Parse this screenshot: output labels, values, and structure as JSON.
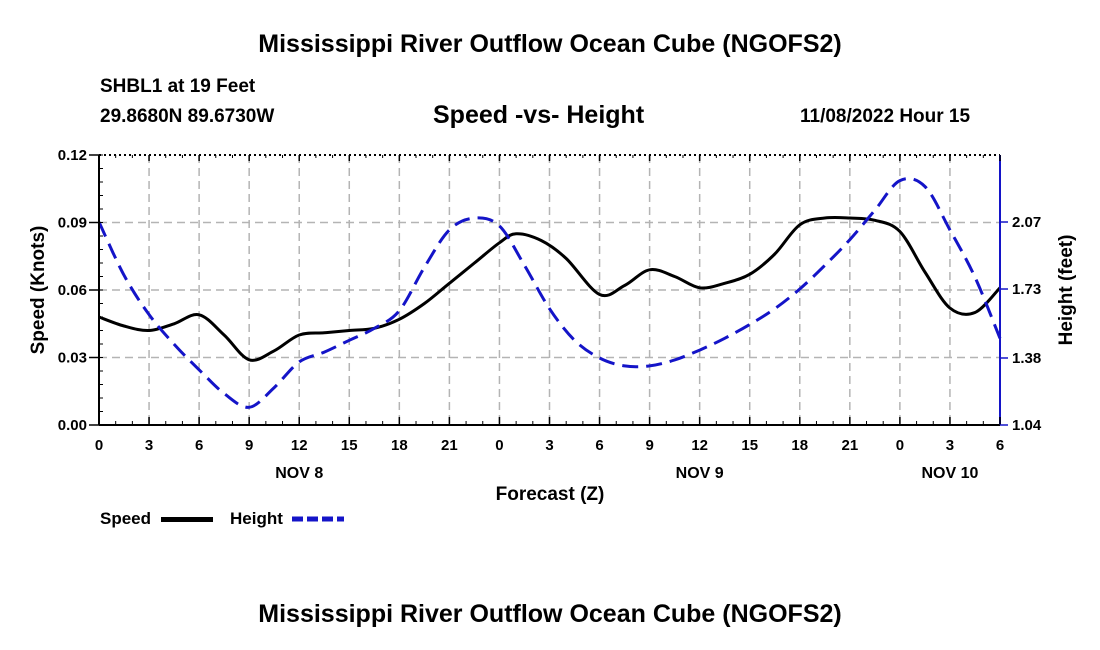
{
  "header": {
    "title": "Mississippi River Outflow Ocean Cube (NGOFS2)",
    "station": "SHBL1 at 19 Feet",
    "coords": "29.8680N  89.6730W",
    "plot_title": "Speed -vs- Height",
    "timestamp": "11/08/2022 Hour 15"
  },
  "footer": {
    "title": "Mississippi River Outflow Ocean Cube (NGOFS2)"
  },
  "legend": {
    "speed_label": "Speed",
    "height_label": "Height"
  },
  "colors": {
    "speed": "#000000",
    "height": "#1414c8",
    "grid": "#b4b4b4"
  },
  "chart_data": {
    "type": "line",
    "title": "Speed -vs- Height",
    "xlabel": "Forecast (Z)",
    "ylabel": "Speed (Knots)",
    "y2label": "Height (feet)",
    "grid": true,
    "x_unit": "hours since Nov 8 00Z",
    "xlim": [
      0,
      54
    ],
    "ylim": [
      0,
      0.12
    ],
    "y2lim": [
      1.04,
      2.41
    ],
    "x_ticks": [
      {
        "x": 0,
        "label": "0"
      },
      {
        "x": 3,
        "label": "3"
      },
      {
        "x": 6,
        "label": "6"
      },
      {
        "x": 9,
        "label": "9"
      },
      {
        "x": 12,
        "label": "12"
      },
      {
        "x": 15,
        "label": "15"
      },
      {
        "x": 18,
        "label": "18"
      },
      {
        "x": 21,
        "label": "21"
      },
      {
        "x": 24,
        "label": "0"
      },
      {
        "x": 27,
        "label": "3"
      },
      {
        "x": 30,
        "label": "6"
      },
      {
        "x": 33,
        "label": "9"
      },
      {
        "x": 36,
        "label": "12"
      },
      {
        "x": 39,
        "label": "15"
      },
      {
        "x": 42,
        "label": "18"
      },
      {
        "x": 45,
        "label": "21"
      },
      {
        "x": 48,
        "label": "0"
      },
      {
        "x": 51,
        "label": "3"
      },
      {
        "x": 54,
        "label": "6"
      }
    ],
    "date_labels": [
      {
        "x": 12,
        "label": "NOV 8"
      },
      {
        "x": 36,
        "label": "NOV 9"
      },
      {
        "x": 51,
        "label": "NOV 10"
      }
    ],
    "y_ticks": [
      {
        "v": 0.0,
        "label": "0.00"
      },
      {
        "v": 0.03,
        "label": "0.03"
      },
      {
        "v": 0.06,
        "label": "0.06"
      },
      {
        "v": 0.09,
        "label": "0.09"
      },
      {
        "v": 0.12,
        "label": "0.12"
      }
    ],
    "y2_ticks": [
      {
        "v": 1.04,
        "label": "1.04"
      },
      {
        "v": 1.38,
        "label": "1.38"
      },
      {
        "v": 1.73,
        "label": "1.73"
      },
      {
        "v": 2.07,
        "label": "2.07"
      }
    ],
    "series": [
      {
        "name": "Speed",
        "axis": "left",
        "style": "solid",
        "x": [
          0,
          1.5,
          3,
          4.5,
          6,
          7.5,
          9,
          10.5,
          12,
          13.5,
          15,
          16.5,
          18,
          19.5,
          21,
          22.5,
          24,
          25,
          26.5,
          28,
          30,
          31.5,
          33,
          34.5,
          36,
          37.5,
          39,
          40.5,
          42,
          43.5,
          45,
          46.5,
          48,
          49.5,
          51,
          52.5,
          54
        ],
        "values": [
          0.048,
          0.044,
          0.042,
          0.045,
          0.049,
          0.04,
          0.029,
          0.033,
          0.04,
          0.041,
          0.042,
          0.043,
          0.047,
          0.054,
          0.063,
          0.072,
          0.081,
          0.085,
          0.082,
          0.074,
          0.058,
          0.062,
          0.069,
          0.066,
          0.061,
          0.063,
          0.067,
          0.076,
          0.089,
          0.092,
          0.092,
          0.091,
          0.086,
          0.068,
          0.052,
          0.05,
          0.061
        ]
      },
      {
        "name": "Height",
        "axis": "right",
        "style": "dashed",
        "x": [
          0,
          1.5,
          3,
          4.5,
          6,
          7.5,
          9,
          10.5,
          12,
          13.5,
          15,
          16.5,
          18,
          19.5,
          21,
          22.5,
          24,
          25.5,
          27,
          28.5,
          30,
          31.5,
          33,
          34.5,
          36,
          37.5,
          39,
          40.5,
          42,
          43.5,
          45,
          46.5,
          48,
          49.5,
          51,
          52.5,
          54
        ],
        "values": [
          2.07,
          1.8,
          1.6,
          1.45,
          1.32,
          1.2,
          1.13,
          1.23,
          1.36,
          1.41,
          1.47,
          1.53,
          1.62,
          1.84,
          2.03,
          2.09,
          2.05,
          1.85,
          1.63,
          1.47,
          1.38,
          1.34,
          1.34,
          1.37,
          1.42,
          1.48,
          1.55,
          1.63,
          1.73,
          1.85,
          1.98,
          2.13,
          2.28,
          2.25,
          2.03,
          1.79,
          1.48
        ]
      }
    ]
  }
}
